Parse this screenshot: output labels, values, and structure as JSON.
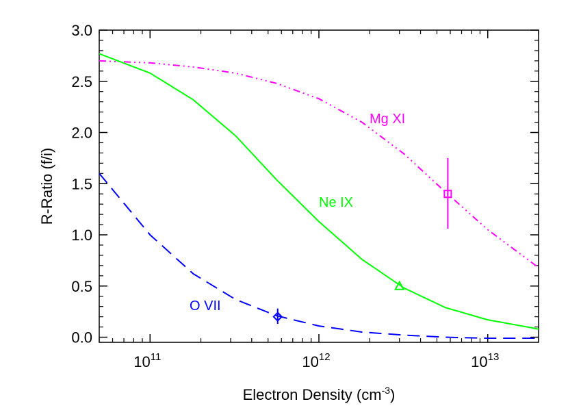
{
  "chart_data": {
    "type": "line",
    "xlabel": "Electron Density (cm",
    "xlabel_sup": "-3",
    "xlabel_close": ")",
    "ylabel": "R-Ratio (f/i)",
    "xscale": "log",
    "xlim": [
      50000000000.0,
      20000000000000.0
    ],
    "ylim": [
      -0.05,
      3.0
    ],
    "grid": false,
    "legend": "none",
    "y_ticks": [
      {
        "value": 0.0,
        "label": "0.0"
      },
      {
        "value": 0.5,
        "label": "0.5"
      },
      {
        "value": 1.0,
        "label": "1.0"
      },
      {
        "value": 1.5,
        "label": "1.5"
      },
      {
        "value": 2.0,
        "label": "2.0"
      },
      {
        "value": 2.5,
        "label": "2.5"
      },
      {
        "value": 3.0,
        "label": "3.0"
      }
    ],
    "x_ticks": [
      {
        "value": 100000000000.0,
        "base": "10",
        "exp": "11"
      },
      {
        "value": 1000000000000.0,
        "base": "10",
        "exp": "12"
      },
      {
        "value": 10000000000000.0,
        "base": "10",
        "exp": "13"
      }
    ],
    "series": [
      {
        "name": "Mg XI",
        "color": "#ff00ff",
        "dash": "dash-dot-dot-dot",
        "x": [
          50000000000.0,
          100000000000.0,
          180000000000.0,
          320000000000.0,
          560000000000.0,
          1000000000000.0,
          1800000000000.0,
          3200000000000.0,
          5600000000000.0,
          10000000000000.0,
          20000000000000.0
        ],
        "y": [
          2.7,
          2.68,
          2.64,
          2.58,
          2.48,
          2.33,
          2.1,
          1.79,
          1.42,
          1.05,
          0.68
        ],
        "measurement": {
          "x": 5800000000000.0,
          "y": 1.4,
          "y_err_low": 1.06,
          "y_err_high": 1.75,
          "marker": "square"
        }
      },
      {
        "name": "Ne IX",
        "color": "#00ff00",
        "dash": "solid",
        "x": [
          50000000000.0,
          100000000000.0,
          180000000000.0,
          320000000000.0,
          560000000000.0,
          1000000000000.0,
          1800000000000.0,
          3200000000000.0,
          5600000000000.0,
          10000000000000.0,
          20000000000000.0
        ],
        "y": [
          2.77,
          2.58,
          2.32,
          1.97,
          1.54,
          1.13,
          0.76,
          0.48,
          0.29,
          0.17,
          0.08
        ],
        "measurement": {
          "x": 3000000000000.0,
          "y": 0.5,
          "marker": "triangle"
        }
      },
      {
        "name": "O VII",
        "color": "#0000ff",
        "dash": "long-dash",
        "x": [
          50000000000.0,
          100000000000.0,
          180000000000.0,
          320000000000.0,
          560000000000.0,
          1000000000000.0,
          1800000000000.0,
          3200000000000.0,
          5600000000000.0,
          10000000000000.0,
          20000000000000.0
        ],
        "y": [
          1.6,
          1.0,
          0.62,
          0.37,
          0.21,
          0.11,
          0.05,
          0.02,
          0.0,
          -0.01,
          -0.01
        ],
        "measurement": {
          "x": 570000000000.0,
          "y": 0.2,
          "y_err_low": 0.13,
          "y_err_high": 0.28,
          "marker": "diamond"
        }
      }
    ]
  }
}
